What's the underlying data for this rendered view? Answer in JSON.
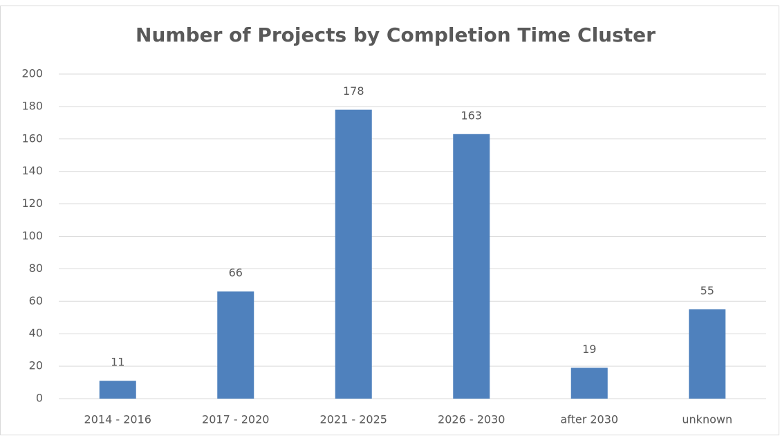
{
  "chart_data": {
    "type": "bar",
    "title": "Number of Projects by Completion Time Cluster",
    "categories": [
      "2014 - 2016",
      "2017 - 2020",
      "2021 - 2025",
      "2026 - 2030",
      "after 2030",
      "unknown"
    ],
    "values": [
      11,
      66,
      178,
      163,
      19,
      55
    ],
    "color": "#4f81bd",
    "ylim": [
      0,
      200
    ],
    "yticks": [
      0,
      20,
      40,
      60,
      80,
      100,
      120,
      140,
      160,
      180,
      200
    ],
    "grid": true,
    "data_labels": true
  }
}
